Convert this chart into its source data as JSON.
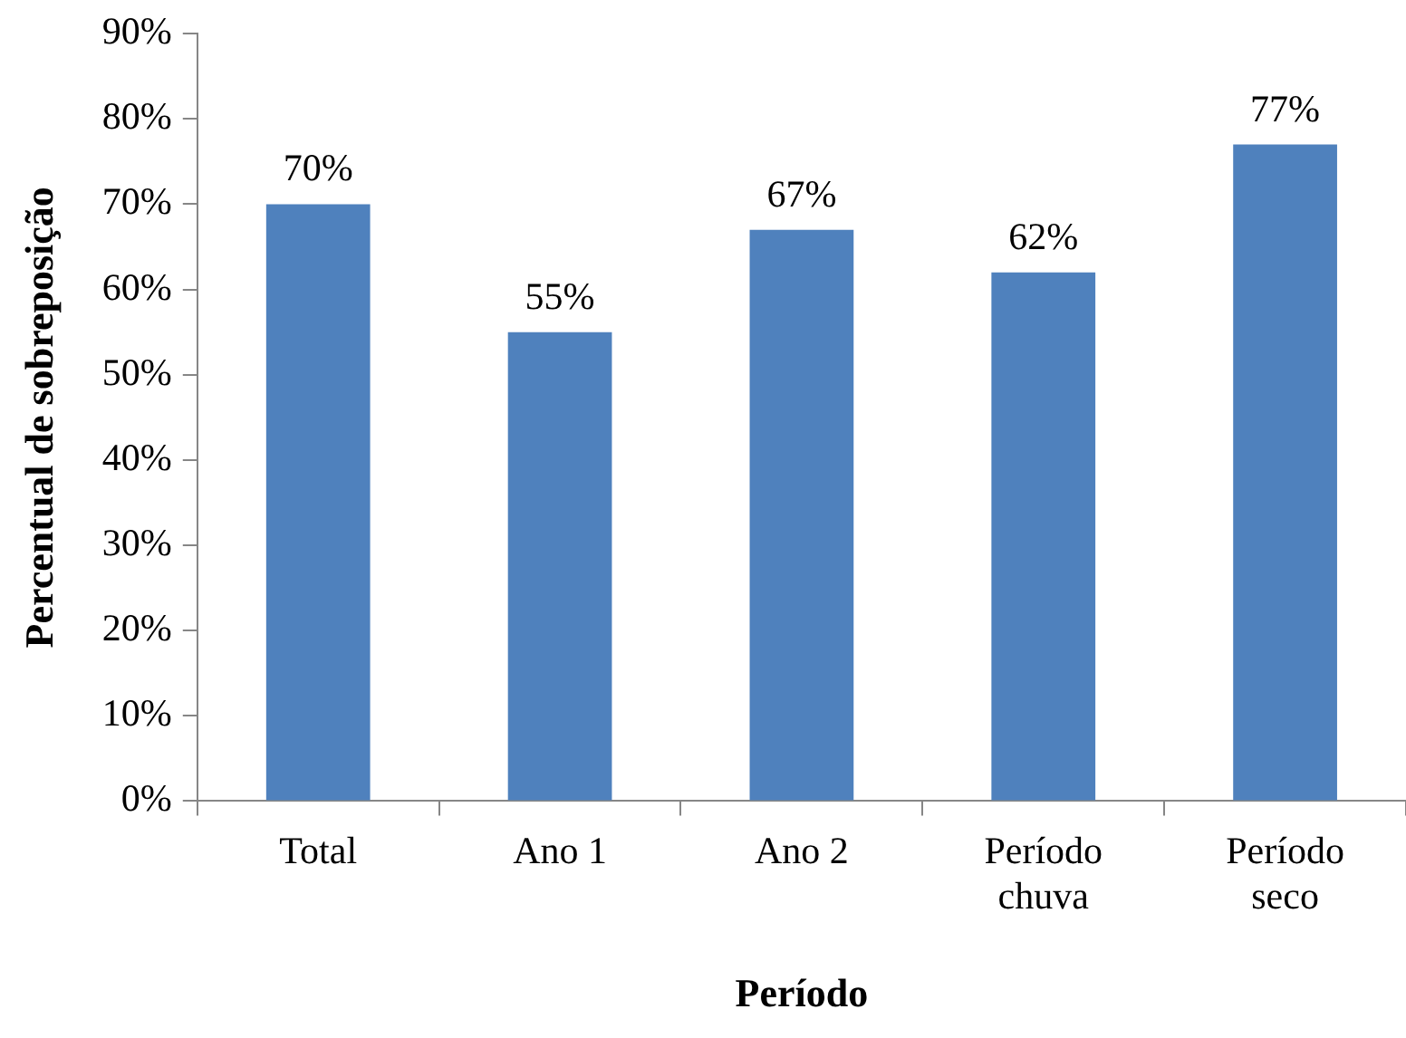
{
  "chart_data": {
    "type": "bar",
    "xlabel": "Período",
    "ylabel": "Percentual de sobreposição",
    "categories": [
      "Total",
      "Ano 1",
      "Ano 2",
      "Período chuva",
      "Período seco"
    ],
    "values": [
      70,
      55,
      67,
      62,
      77
    ],
    "value_labels": [
      "70%",
      "55%",
      "67%",
      "62%",
      "77%"
    ],
    "color": "#4f81bd",
    "ylim": [
      0,
      90
    ],
    "yticks": [
      {
        "value": 0,
        "label": "0%"
      },
      {
        "value": 10,
        "label": "10%"
      },
      {
        "value": 20,
        "label": "20%"
      },
      {
        "value": 30,
        "label": "30%"
      },
      {
        "value": 40,
        "label": "40%"
      },
      {
        "value": 50,
        "label": "50%"
      },
      {
        "value": 60,
        "label": "60%"
      },
      {
        "value": 70,
        "label": "70%"
      },
      {
        "value": 80,
        "label": "80%"
      },
      {
        "value": 90,
        "label": "90%"
      }
    ],
    "grid": false,
    "legend": false
  }
}
